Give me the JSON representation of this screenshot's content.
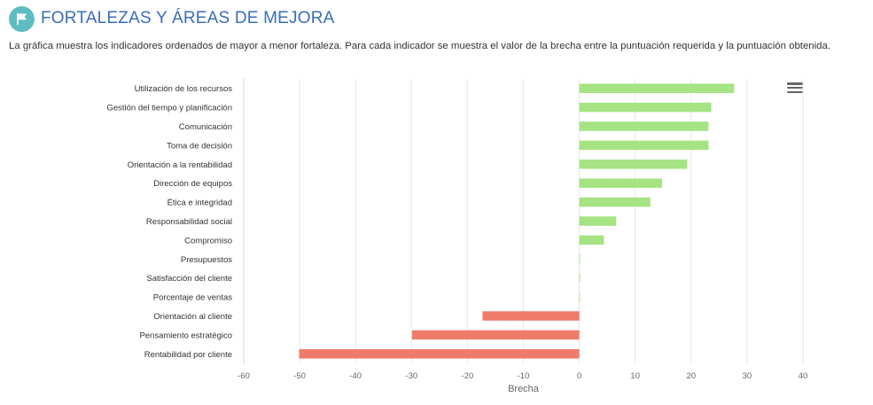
{
  "header": {
    "icon": "flag-icon",
    "title": "FORTALEZAS Y ÁREAS DE MEJORA"
  },
  "description": "La gráfica muestra los indicadores ordenados de mayor a menor fortaleza. Para cada indicador se muestra el valor de la brecha entre la puntuación requerida y la puntuación obtenida.",
  "menu": {
    "icon": "hamburger-menu-icon"
  },
  "colors": {
    "positive": "#a5e383",
    "negative": "#f07b6b",
    "grid": "#e6e6e6",
    "axis_text": "#666666"
  },
  "chart_data": {
    "type": "bar",
    "orientation": "horizontal",
    "categories": [
      "Utilización de los recursos",
      "Gestión del tiempo y planificación",
      "Comunicación",
      "Toma de decisión",
      "Orientación a la rentabilidad",
      "Dirección de equipos",
      "Ética e integridad",
      "Responsabilidad social",
      "Compromiso",
      "Presupuestos",
      "Satisfacción del cliente",
      "Porcentaje de ventas",
      "Orientación al cliente",
      "Pensamiento estratégico",
      "Rentabilidad por cliente"
    ],
    "values": [
      27.7,
      23.6,
      23.1,
      23.1,
      19.3,
      14.8,
      12.7,
      6.6,
      4.4,
      0,
      0,
      0,
      -17.3,
      -29.9,
      -50.1
    ],
    "xlabel": "Brecha",
    "xlim": [
      -60,
      40
    ],
    "xticks": [
      "-60",
      "-50",
      "-40",
      "-30",
      "-20",
      "-10",
      "0",
      "10",
      "20",
      "30",
      "40"
    ],
    "grid": true,
    "legend": "none"
  }
}
